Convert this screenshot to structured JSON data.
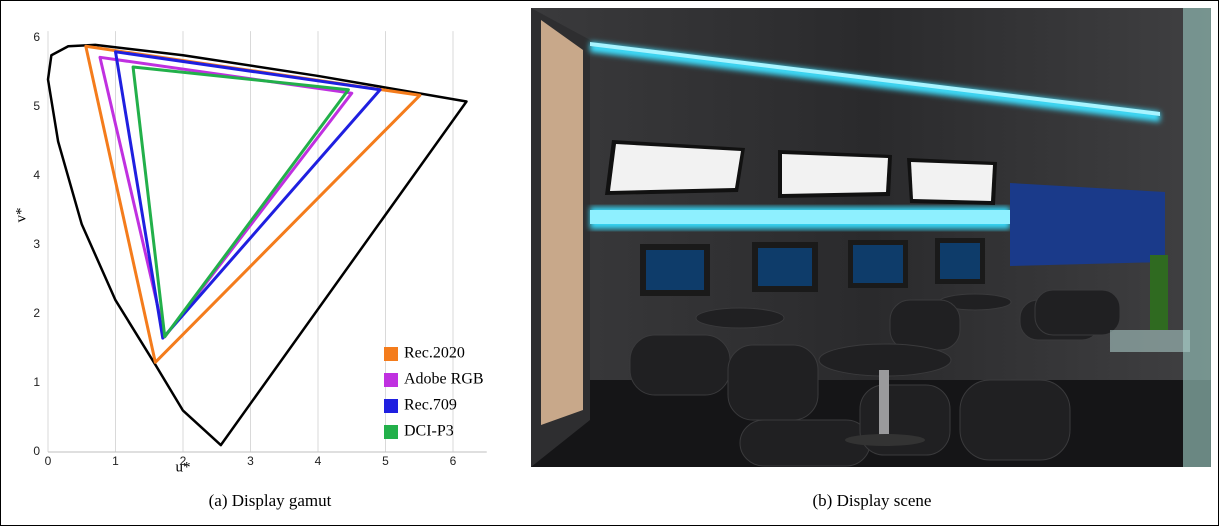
{
  "chart_data": {
    "type": "polygon",
    "x_label": "u*",
    "y_label": "v*",
    "xlim": [
      0,
      6.5
    ],
    "ylim": [
      0,
      6.1
    ],
    "xticks": [
      0,
      1,
      2,
      3,
      4,
      5,
      6
    ],
    "yticks": [
      0,
      1,
      2,
      3,
      4,
      5,
      6
    ],
    "grid": "x",
    "legend": "lower right",
    "locus": {
      "color": "#000000",
      "x": [
        2.56,
        2.0,
        1.6,
        1.0,
        0.5,
        0.15,
        0.0,
        0.05,
        0.3,
        0.7,
        2.0,
        4.0,
        6.2
      ],
      "y": [
        0.1,
        0.6,
        1.25,
        2.2,
        3.3,
        4.5,
        5.4,
        5.75,
        5.88,
        5.9,
        5.75,
        5.45,
        5.08
      ]
    },
    "series": [
      {
        "name": "Rec.2020",
        "color": "#f47c1c",
        "x": [
          5.51,
          0.56,
          1.59
        ],
        "y": [
          5.17,
          5.88,
          1.3
        ]
      },
      {
        "name": "Adobe RGB",
        "color": "#c030e0",
        "x": [
          4.5,
          0.77,
          1.73
        ],
        "y": [
          5.2,
          5.72,
          1.67
        ]
      },
      {
        "name": "Rec.709",
        "color": "#1f1fe0",
        "x": [
          4.92,
          1.0,
          1.7
        ],
        "y": [
          5.25,
          5.8,
          1.65
        ]
      },
      {
        "name": "DCI-P3",
        "color": "#22b04a",
        "x": [
          4.45,
          1.26,
          1.73
        ],
        "y": [
          5.25,
          5.58,
          1.67
        ]
      }
    ]
  },
  "captions": [
    "(a) Display gamut",
    "(b) Display scene"
  ]
}
